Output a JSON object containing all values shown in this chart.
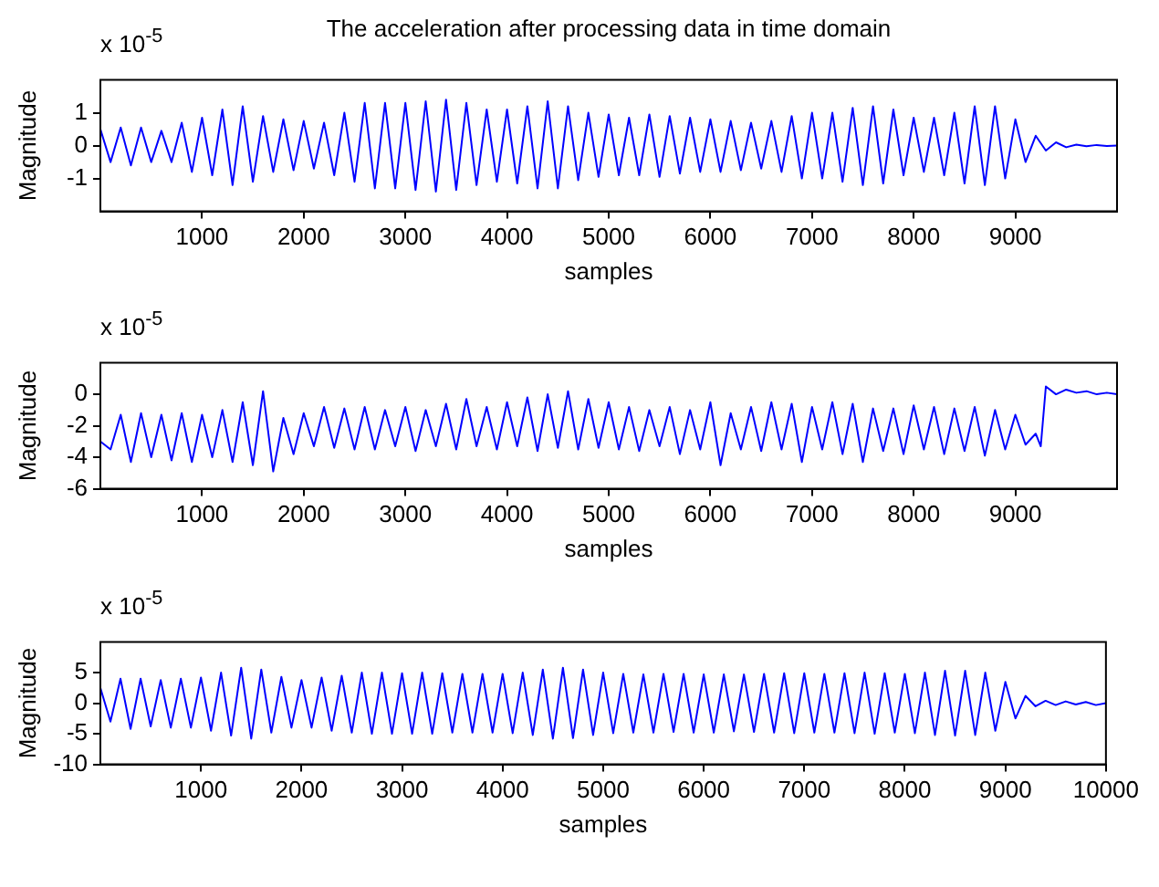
{
  "chart_data": [
    {
      "type": "line",
      "title": "The acceleration after processing data in time domain",
      "xlabel": "samples",
      "ylabel": "Magnitude",
      "annotations": [
        "x 10$^{-5}$"
      ],
      "color": "#0000ff",
      "xlim": [
        0,
        10000
      ],
      "xticks": [
        1000,
        2000,
        3000,
        4000,
        5000,
        6000,
        7000,
        8000,
        9000
      ],
      "ylim": [
        -2,
        2
      ],
      "yticks": [
        -1,
        0,
        1
      ],
      "x": [
        0,
        100,
        200,
        300,
        400,
        500,
        600,
        700,
        800,
        900,
        1000,
        1100,
        1200,
        1300,
        1400,
        1500,
        1600,
        1700,
        1800,
        1900,
        2000,
        2100,
        2200,
        2300,
        2400,
        2500,
        2600,
        2700,
        2800,
        2900,
        3000,
        3100,
        3200,
        3300,
        3400,
        3500,
        3600,
        3700,
        3800,
        3900,
        4000,
        4100,
        4200,
        4300,
        4400,
        4500,
        4600,
        4700,
        4800,
        4900,
        5000,
        5100,
        5200,
        5300,
        5400,
        5500,
        5600,
        5700,
        5800,
        5900,
        6000,
        6100,
        6200,
        6300,
        6400,
        6500,
        6600,
        6700,
        6800,
        6900,
        7000,
        7100,
        7200,
        7300,
        7400,
        7500,
        7600,
        7700,
        7800,
        7900,
        8000,
        8100,
        8200,
        8300,
        8400,
        8500,
        8600,
        8700,
        8800,
        8900,
        9000,
        9100,
        9200,
        9300,
        9400,
        9500,
        9600,
        9700,
        9800,
        9900,
        10000
      ],
      "values": [
        0.5,
        -0.5,
        0.55,
        -0.6,
        0.55,
        -0.5,
        0.45,
        -0.5,
        0.7,
        -0.8,
        0.85,
        -0.9,
        1.1,
        -1.2,
        1.2,
        -1.1,
        0.9,
        -0.8,
        0.8,
        -0.75,
        0.75,
        -0.7,
        0.7,
        -0.9,
        1.0,
        -1.1,
        1.3,
        -1.3,
        1.3,
        -1.3,
        1.3,
        -1.35,
        1.35,
        -1.4,
        1.4,
        -1.35,
        1.3,
        -1.2,
        1.1,
        -1.1,
        1.1,
        -1.15,
        1.2,
        -1.3,
        1.35,
        -1.3,
        1.2,
        -1.05,
        1.0,
        -0.95,
        0.95,
        -0.9,
        0.85,
        -0.9,
        0.95,
        -0.95,
        0.9,
        -0.85,
        0.85,
        -0.8,
        0.8,
        -0.8,
        0.75,
        -0.75,
        0.7,
        -0.7,
        0.75,
        -0.8,
        0.9,
        -1.0,
        1.0,
        -1.0,
        1.0,
        -1.1,
        1.15,
        -1.2,
        1.2,
        -1.15,
        1.1,
        -0.9,
        0.85,
        -0.8,
        0.85,
        -0.9,
        1.0,
        -1.15,
        1.2,
        -1.2,
        1.2,
        -1.0,
        0.8,
        -0.5,
        0.3,
        -0.15,
        0.1,
        -0.05,
        0.03,
        -0.02,
        0.02,
        -0.01,
        0
      ]
    },
    {
      "type": "line",
      "xlabel": "samples",
      "ylabel": "Magnitude",
      "annotations": [
        "x 10$^{-5}$"
      ],
      "color": "#0000ff",
      "xlim": [
        0,
        10000
      ],
      "xticks": [
        1000,
        2000,
        3000,
        4000,
        5000,
        6000,
        7000,
        8000,
        9000
      ],
      "ylim": [
        -6,
        2
      ],
      "yticks": [
        -6,
        -4,
        -2,
        0
      ],
      "x": [
        0,
        100,
        200,
        300,
        400,
        500,
        600,
        700,
        800,
        900,
        1000,
        1100,
        1200,
        1300,
        1400,
        1500,
        1600,
        1700,
        1800,
        1900,
        2000,
        2100,
        2200,
        2300,
        2400,
        2500,
        2600,
        2700,
        2800,
        2900,
        3000,
        3100,
        3200,
        3300,
        3400,
        3500,
        3600,
        3700,
        3800,
        3900,
        4000,
        4100,
        4200,
        4300,
        4400,
        4500,
        4600,
        4700,
        4800,
        4900,
        5000,
        5100,
        5200,
        5300,
        5400,
        5500,
        5600,
        5700,
        5800,
        5900,
        6000,
        6100,
        6200,
        6300,
        6400,
        6500,
        6600,
        6700,
        6800,
        6900,
        7000,
        7100,
        7200,
        7300,
        7400,
        7500,
        7600,
        7700,
        7800,
        7900,
        8000,
        8100,
        8200,
        8300,
        8400,
        8500,
        8600,
        8700,
        8800,
        8900,
        9000,
        9100,
        9200,
        9250,
        9300,
        9400,
        9500,
        9600,
        9700,
        9800,
        9900,
        10000
      ],
      "values": [
        -3.0,
        -3.5,
        -1.3,
        -4.3,
        -1.2,
        -4.0,
        -1.3,
        -4.2,
        -1.2,
        -4.3,
        -1.3,
        -4.0,
        -1.0,
        -4.3,
        -0.5,
        -4.5,
        0.2,
        -4.9,
        -1.5,
        -3.8,
        -1.2,
        -3.3,
        -0.8,
        -3.4,
        -0.9,
        -3.5,
        -0.8,
        -3.5,
        -1.0,
        -3.3,
        -0.8,
        -3.6,
        -1.0,
        -3.3,
        -0.6,
        -3.5,
        -0.3,
        -3.3,
        -0.8,
        -3.5,
        -0.5,
        -3.3,
        -0.2,
        -3.6,
        0.0,
        -3.4,
        0.2,
        -3.5,
        -0.3,
        -3.4,
        -0.5,
        -3.5,
        -0.8,
        -3.6,
        -1.0,
        -3.3,
        -0.8,
        -3.8,
        -1.0,
        -3.5,
        -0.5,
        -4.5,
        -1.2,
        -3.5,
        -0.8,
        -3.6,
        -0.5,
        -3.5,
        -0.6,
        -4.3,
        -0.8,
        -3.5,
        -0.5,
        -3.8,
        -0.6,
        -4.3,
        -0.9,
        -3.6,
        -0.9,
        -3.8,
        -0.7,
        -3.5,
        -0.8,
        -3.8,
        -0.9,
        -3.6,
        -0.8,
        -3.9,
        -1.0,
        -3.5,
        -1.3,
        -3.2,
        -2.5,
        -3.3,
        0.5,
        0.0,
        0.3,
        0.1,
        0.2,
        0.0,
        0.1,
        0.0
      ]
    },
    {
      "type": "line",
      "xlabel": "samples",
      "ylabel": "Magnitude",
      "annotations": [
        "x 10$^{-5}$"
      ],
      "color": "#0000ff",
      "xlim": [
        0,
        10000
      ],
      "xticks": [
        1000,
        2000,
        3000,
        4000,
        5000,
        6000,
        7000,
        8000,
        9000,
        10000
      ],
      "ylim": [
        -10,
        10
      ],
      "yticks": [
        -10,
        -5,
        0,
        5
      ],
      "x": [
        0,
        100,
        200,
        300,
        400,
        500,
        600,
        700,
        800,
        900,
        1000,
        1100,
        1200,
        1300,
        1400,
        1500,
        1600,
        1700,
        1800,
        1900,
        2000,
        2100,
        2200,
        2300,
        2400,
        2500,
        2600,
        2700,
        2800,
        2900,
        3000,
        3100,
        3200,
        3300,
        3400,
        3500,
        3600,
        3700,
        3800,
        3900,
        4000,
        4100,
        4200,
        4300,
        4400,
        4500,
        4600,
        4700,
        4800,
        4900,
        5000,
        5100,
        5200,
        5300,
        5400,
        5500,
        5600,
        5700,
        5800,
        5900,
        6000,
        6100,
        6200,
        6300,
        6400,
        6500,
        6600,
        6700,
        6800,
        6900,
        7000,
        7100,
        7200,
        7300,
        7400,
        7500,
        7600,
        7700,
        7800,
        7900,
        8000,
        8100,
        8200,
        8300,
        8400,
        8500,
        8600,
        8700,
        8800,
        8900,
        9000,
        9100,
        9200,
        9300,
        9400,
        9500,
        9600,
        9700,
        9800,
        9900,
        10000
      ],
      "values": [
        2.5,
        -3.0,
        4.0,
        -4.2,
        4.0,
        -3.8,
        3.8,
        -4.0,
        4.0,
        -4.0,
        4.2,
        -4.5,
        5.0,
        -5.3,
        5.8,
        -5.8,
        5.5,
        -4.8,
        4.3,
        -4.0,
        3.8,
        -4.0,
        4.2,
        -4.5,
        4.5,
        -4.8,
        5.0,
        -5.0,
        5.0,
        -5.0,
        4.9,
        -5.0,
        5.0,
        -5.0,
        4.9,
        -4.8,
        4.8,
        -4.8,
        4.8,
        -4.8,
        4.8,
        -4.9,
        5.0,
        -5.2,
        5.5,
        -5.8,
        5.8,
        -5.7,
        5.5,
        -5.2,
        5.0,
        -4.9,
        4.8,
        -4.8,
        4.7,
        -4.8,
        4.8,
        -4.7,
        4.8,
        -4.8,
        4.7,
        -4.8,
        4.7,
        -4.6,
        4.7,
        -4.7,
        4.8,
        -4.8,
        4.9,
        -4.9,
        4.9,
        -4.8,
        4.8,
        -4.8,
        4.9,
        -4.9,
        5.0,
        -5.0,
        4.9,
        -4.8,
        4.8,
        -4.9,
        5.0,
        -5.2,
        5.3,
        -5.3,
        5.3,
        -5.2,
        5.0,
        -4.5,
        3.5,
        -2.5,
        1.2,
        -0.5,
        0.4,
        -0.3,
        0.3,
        -0.2,
        0.2,
        -0.3,
        0
      ]
    }
  ]
}
